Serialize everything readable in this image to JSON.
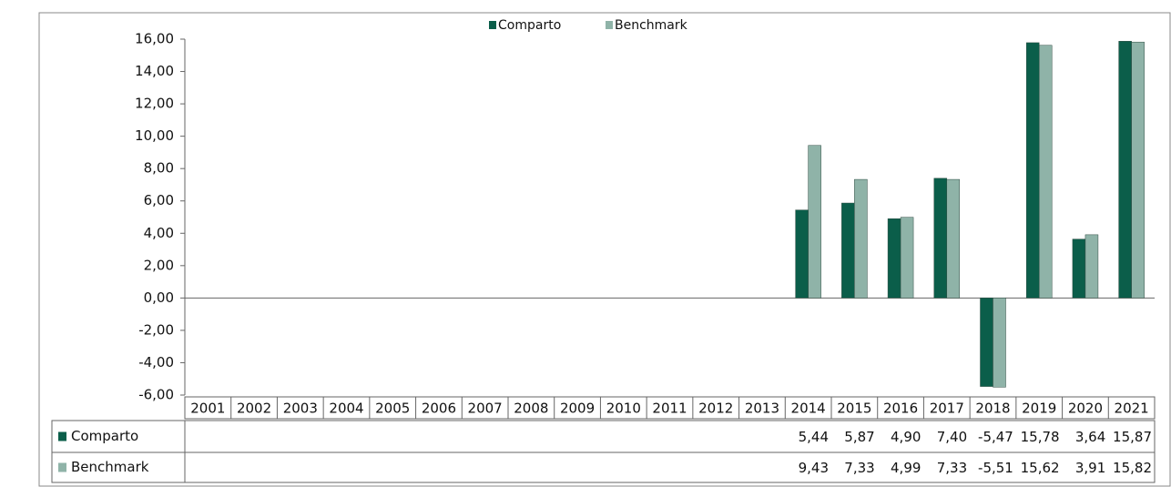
{
  "chart_data": {
    "type": "bar",
    "categories": [
      "2001",
      "2002",
      "2003",
      "2004",
      "2005",
      "2006",
      "2007",
      "2008",
      "2009",
      "2010",
      "2011",
      "2012",
      "2013",
      "2014",
      "2015",
      "2016",
      "2017",
      "2018",
      "2019",
      "2020",
      "2021"
    ],
    "series": [
      {
        "name": "Comparto",
        "color": "#0b5e4a",
        "values": [
          null,
          null,
          null,
          null,
          null,
          null,
          null,
          null,
          null,
          null,
          null,
          null,
          null,
          5.44,
          5.87,
          4.9,
          7.4,
          -5.47,
          15.78,
          3.64,
          15.87
        ],
        "value_labels": [
          null,
          null,
          null,
          null,
          null,
          null,
          null,
          null,
          null,
          null,
          null,
          null,
          null,
          "5,44",
          "5,87",
          "4,90",
          "7,40",
          "-5,47",
          "15,78",
          "3,64",
          "15,87"
        ]
      },
      {
        "name": "Benchmark",
        "color": "#8fb3a8",
        "values": [
          null,
          null,
          null,
          null,
          null,
          null,
          null,
          null,
          null,
          null,
          null,
          null,
          null,
          9.43,
          7.33,
          4.99,
          7.33,
          -5.51,
          15.62,
          3.91,
          15.82
        ],
        "value_labels": [
          null,
          null,
          null,
          null,
          null,
          null,
          null,
          null,
          null,
          null,
          null,
          null,
          null,
          "9,43",
          "7,33",
          "4,99",
          "7,33",
          "-5,51",
          "15,62",
          "3,91",
          "15,82"
        ]
      }
    ],
    "ylim": [
      -6,
      16
    ],
    "yticks": [
      {
        "value": -6,
        "label": "-6,00"
      },
      {
        "value": -4,
        "label": "-4,00"
      },
      {
        "value": -2,
        "label": "-2,00"
      },
      {
        "value": 0,
        "label": "0,00"
      },
      {
        "value": 2,
        "label": "2,00"
      },
      {
        "value": 4,
        "label": "4,00"
      },
      {
        "value": 6,
        "label": "6,00"
      },
      {
        "value": 8,
        "label": "8,00"
      },
      {
        "value": 10,
        "label": "10,00"
      },
      {
        "value": 12,
        "label": "12,00"
      },
      {
        "value": 14,
        "label": "14,00"
      },
      {
        "value": 16,
        "label": "16,00"
      }
    ]
  }
}
